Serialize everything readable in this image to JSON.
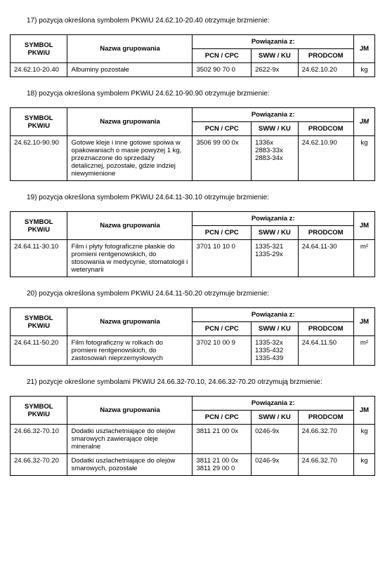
{
  "headers": {
    "symbol": "SYMBOL PKWiU",
    "nazwa": "Nazwa grupowania",
    "powiazania": "Powiązania z:",
    "pcn": "PCN / CPC",
    "sww": "SWW / KU",
    "prodcom": "PRODCOM",
    "jm": "JM"
  },
  "sections": [
    {
      "title": "17) pozycja określona symbolem PKWiU 24.62.10-20.40 otrzymuje brzmienie:",
      "rows": [
        {
          "symbol": "24.62.10-20.40",
          "nazwa": "Albuminy pozostałe",
          "pcn": "3502 90 70 0",
          "sww": "2622-9x",
          "prodcom": "24.62.10.20",
          "jm": "kg"
        }
      ]
    },
    {
      "title": "18) pozycja określona symbolem PKWiU 24.62.10-90.90 otrzymuje brzmienie:",
      "jm_italic": true,
      "rows": [
        {
          "symbol": "24.62.10-90.90",
          "nazwa": "Gotowe kleje i inne gotowe spoiwa w opakowaniach o masie powyżej 1 kg, przeznaczone do sprzedaży detalicznej, pozostałe, gdzie indziej niewymienione",
          "pcn": "3506 99 00 0x",
          "sww": "1336x\n2883-33x\n2883-34x",
          "prodcom": "24.62.10.90",
          "jm": "kg"
        }
      ]
    },
    {
      "title": "19) pozycja określona symbolem PKWiU 24.64.11-30.10 otrzymuje brzmienie:",
      "rows": [
        {
          "symbol": "24.64.11-30.10",
          "nazwa": "Film i płyty fotograficzne płaskie do promieni rentgenowskich, do stosowania w medycynie, stomatologii i weterynarii",
          "pcn": "3701 10 10 0",
          "sww": "1335-321\n1335-29x",
          "prodcom": "24.64.11-30",
          "jm": "m²"
        }
      ]
    },
    {
      "title": "20) pozycja określona symbolem PKWiU  24.64.11-50.20 otrzymuje brzmienie:",
      "rows": [
        {
          "symbol": "24.64.11-50.20",
          "nazwa": "Film fotograficzny w rolkach do promieni rentgenowskich, do zastosowań nieprzemysłowych",
          "pcn": "3702 10 00 9",
          "sww": "1335-32x\n1335-432\n1335-439",
          "prodcom": "24.64.11.50",
          "jm": "m²"
        }
      ]
    },
    {
      "title": "21) pozycje określone symbolami PKWiU 24.66.32-70.10, 24.66.32-70.20 otrzymują brzmienie:",
      "rows": [
        {
          "symbol": "24.66.32-70.10",
          "nazwa": "Dodatki uszlachetniające  do olejów smarowych zawierające oleje mineralne",
          "pcn": "3811 21 00 0x",
          "sww": "0246-9x",
          "prodcom": "24.66.32.70",
          "jm": "kg"
        },
        {
          "symbol": "24.66.32-70.20",
          "nazwa": "Dodatki uszlachetniające  do olejów smarowych,  pozostałe",
          "pcn": "3811 21 00 0x\n3811 29 00 0",
          "sww": "0246-9x",
          "prodcom": "24.66.32.70",
          "jm": "kg"
        }
      ]
    }
  ]
}
